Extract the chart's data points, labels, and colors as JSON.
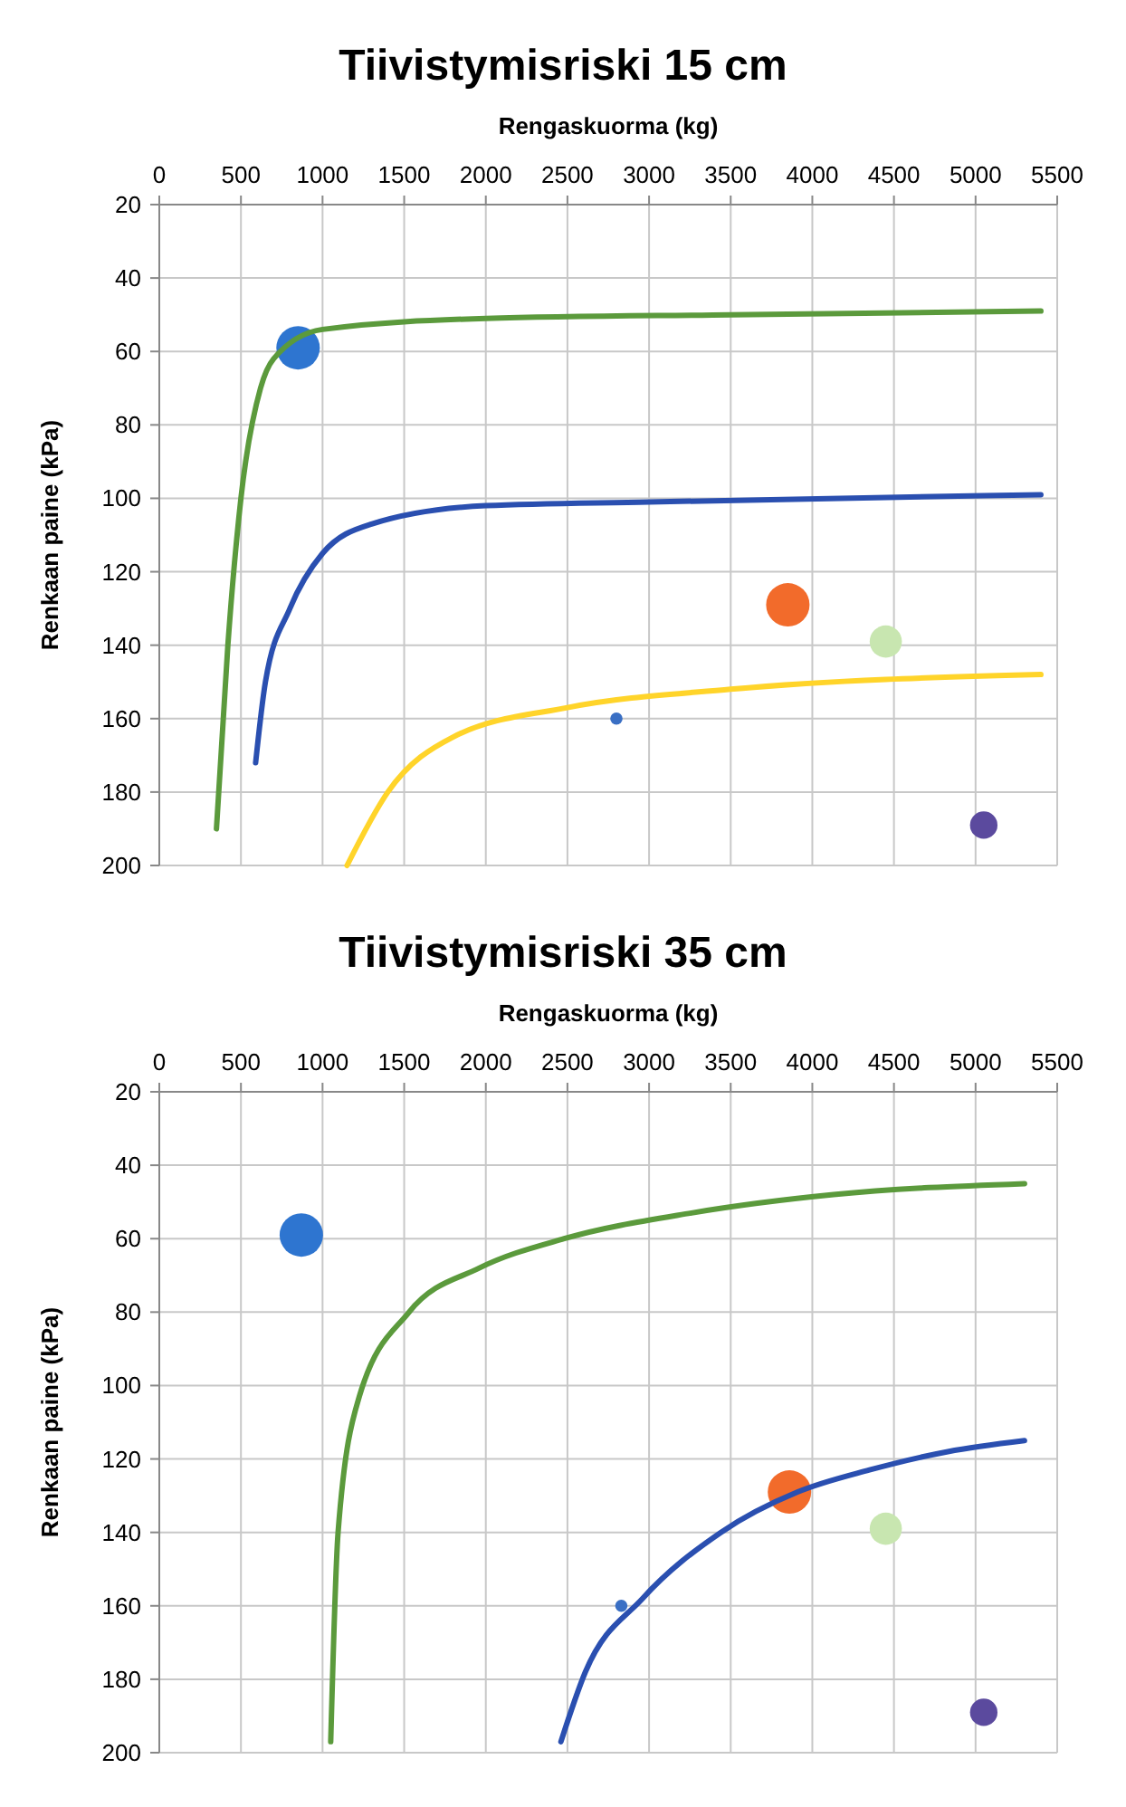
{
  "chart_data": [
    {
      "type": "bubble",
      "title": "Tiivistymisriski 15 cm",
      "xlabel": "Rengaskuorma (kg)",
      "ylabel": "Renkaan paine (kPa)",
      "xlim": [
        0,
        5500
      ],
      "xticks": [
        0,
        500,
        1000,
        1500,
        2000,
        2500,
        3000,
        3500,
        4000,
        4500,
        5000,
        5500
      ],
      "ylim": [
        200,
        20
      ],
      "yticks": [
        20,
        40,
        60,
        80,
        100,
        120,
        140,
        160,
        180,
        200
      ],
      "grid": true,
      "series": [
        {
          "type": "line",
          "color": "#5b9a3c",
          "marker": "none",
          "line_style": "solid",
          "x": [
            350,
            420,
            500,
            620,
            700,
            1000,
            2000,
            3500,
            5400
          ],
          "values": [
            190,
            140,
            100,
            70,
            62,
            54,
            51,
            50,
            49
          ]
        },
        {
          "type": "line",
          "color": "#2a4fb0",
          "marker": "none",
          "line_style": "solid",
          "x": [
            590,
            650,
            800,
            1000,
            1300,
            2000,
            3000,
            5400
          ],
          "values": [
            172,
            150,
            130,
            115,
            107,
            102,
            101,
            99
          ]
        },
        {
          "type": "line",
          "color": "#ffd42a",
          "marker": "none",
          "line_style": "solid",
          "x": [
            1150,
            1400,
            1800,
            2500,
            3500,
            5400
          ],
          "values": [
            200,
            180,
            165,
            157,
            152,
            148
          ]
        },
        {
          "type": "bubble",
          "x": [
            850,
            3850,
            4450,
            2800,
            5050
          ],
          "values": [
            59,
            129,
            139,
            160,
            189
          ],
          "sizes": [
            1,
            1,
            0.55,
            0.08,
            0.4
          ],
          "colors": [
            "#2e75d0",
            "#f26b2b",
            "#c8e6b0",
            "#3a6fc4",
            "#5b4a9e"
          ]
        }
      ]
    },
    {
      "type": "bubble",
      "title": "Tiivistymisriski 35 cm",
      "xlabel": "Rengaskuorma (kg)",
      "ylabel": "Renkaan paine (kPa)",
      "xlim": [
        0,
        5500
      ],
      "xticks": [
        0,
        500,
        1000,
        1500,
        2000,
        2500,
        3000,
        3500,
        4000,
        4500,
        5000,
        5500
      ],
      "ylim": [
        200,
        20
      ],
      "yticks": [
        20,
        40,
        60,
        80,
        100,
        120,
        140,
        160,
        180,
        200
      ],
      "grid": true,
      "series": [
        {
          "type": "line",
          "color": "#5b9a3c",
          "marker": "none",
          "line_style": "solid",
          "x": [
            1050,
            1095,
            1225,
            1530,
            1960,
            2480,
            3260,
            4130,
            5300
          ],
          "values": [
            197,
            140,
            103,
            80,
            68,
            60,
            53,
            48,
            45
          ]
        },
        {
          "type": "line",
          "color": "#2a4fb0",
          "marker": "none",
          "line_style": "solid",
          "x": [
            2460,
            2610,
            2960,
            3440,
            3910,
            4350,
            4830,
            5300
          ],
          "values": [
            197,
            178,
            158,
            140,
            129,
            123,
            118,
            115
          ]
        },
        {
          "type": "bubble",
          "x": [
            870,
            3860,
            4450,
            2830,
            5050
          ],
          "values": [
            59,
            129,
            139,
            160,
            189
          ],
          "sizes": [
            1,
            1,
            0.55,
            0.08,
            0.4
          ],
          "colors": [
            "#2e75d0",
            "#f26b2b",
            "#c8e6b0",
            "#3a6fc4",
            "#5b4a9e"
          ]
        }
      ]
    }
  ]
}
